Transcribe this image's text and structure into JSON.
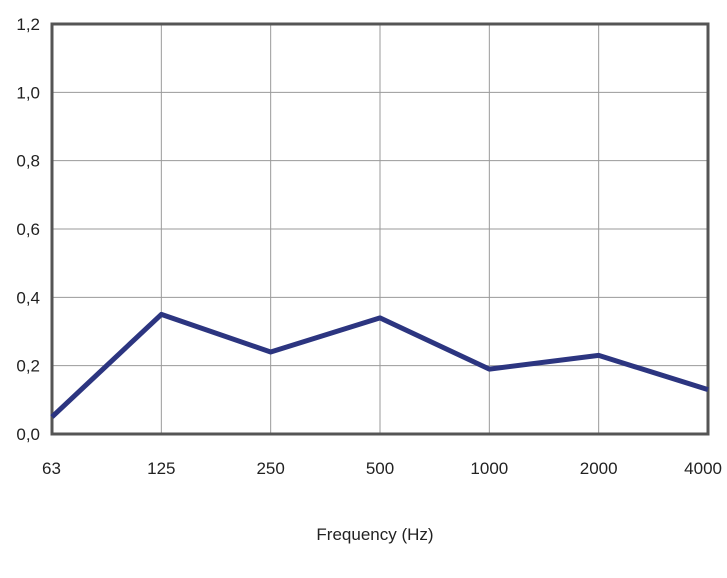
{
  "chart_data": {
    "type": "line",
    "title": "",
    "xlabel": "Frequency (Hz)",
    "ylabel": "",
    "categories": [
      "63",
      "125",
      "250",
      "500",
      "1000",
      "2000",
      "4000"
    ],
    "series": [
      {
        "values": [
          0.05,
          0.35,
          0.24,
          0.34,
          0.19,
          0.23,
          0.13
        ]
      }
    ],
    "ylim": [
      0,
      1.2
    ],
    "yticks": [
      "0,0",
      "0,2",
      "0,4",
      "0,6",
      "0,8",
      "1,0",
      "1,2"
    ],
    "grid": true,
    "legend": "none",
    "colors": {
      "line": "#2c3580",
      "grid": "#9a9a9a",
      "frame": "#555555"
    }
  }
}
